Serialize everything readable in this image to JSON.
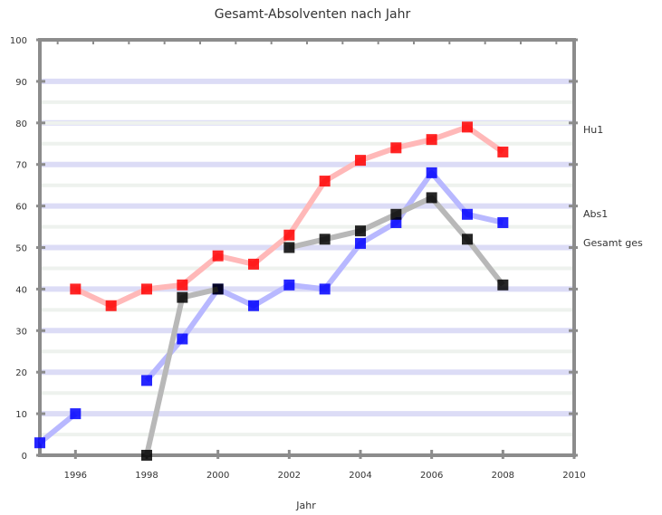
{
  "chart_data": {
    "type": "line",
    "title": "Gesamt-Absolventen nach Jahr",
    "xlabel": "Jahr",
    "ylabel": "",
    "x": [
      1995,
      1996,
      1997,
      1998,
      1999,
      2000,
      2001,
      2002,
      2003,
      2004,
      2005,
      2006,
      2007,
      2008,
      2009
    ],
    "xlim": [
      1995,
      2010
    ],
    "ylim": [
      0,
      100
    ],
    "xticks": [
      "1996",
      "1998",
      "2000",
      "2002",
      "2004",
      "2006",
      "2008",
      "2010"
    ],
    "yticks": [
      "0",
      "10",
      "20",
      "30",
      "40",
      "50",
      "60",
      "70",
      "80",
      "90",
      "100"
    ],
    "grid": true,
    "series": [
      {
        "name": "Hu1",
        "color": "#ff0000",
        "values": [
          null,
          40,
          36,
          40,
          41,
          48,
          46,
          53,
          66,
          71,
          74,
          76,
          79,
          73,
          null
        ]
      },
      {
        "name": "Abs1",
        "color": "#0000ff",
        "values": [
          3,
          10,
          null,
          18,
          28,
          40,
          36,
          41,
          40,
          51,
          56,
          68,
          58,
          56,
          null
        ]
      },
      {
        "name": "Gesamt ges",
        "color": "#000000",
        "values": [
          null,
          null,
          null,
          0,
          38,
          40,
          null,
          50,
          52,
          54,
          58,
          62,
          52,
          41,
          null
        ]
      }
    ]
  }
}
